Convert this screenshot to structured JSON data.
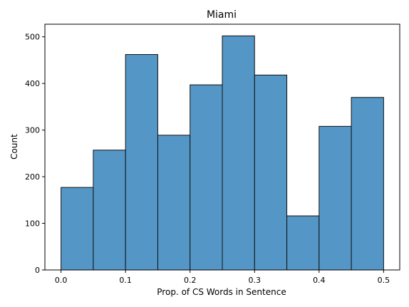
{
  "chart_data": {
    "type": "bar",
    "title": "Miami",
    "xlabel": "Prop. of CS Words in Sentence",
    "ylabel": "Count",
    "bins": [
      {
        "start": 0.0,
        "end": 0.05,
        "count": 177
      },
      {
        "start": 0.05,
        "end": 0.1,
        "count": 257
      },
      {
        "start": 0.1,
        "end": 0.15,
        "count": 462
      },
      {
        "start": 0.15,
        "end": 0.2,
        "count": 289
      },
      {
        "start": 0.2,
        "end": 0.25,
        "count": 397
      },
      {
        "start": 0.25,
        "end": 0.3,
        "count": 502
      },
      {
        "start": 0.3,
        "end": 0.35,
        "count": 418
      },
      {
        "start": 0.35,
        "end": 0.4,
        "count": 116
      },
      {
        "start": 0.4,
        "end": 0.45,
        "count": 308
      },
      {
        "start": 0.45,
        "end": 0.5,
        "count": 370
      }
    ],
    "xlim": [
      -0.025,
      0.525
    ],
    "ylim": [
      0,
      527
    ],
    "xticks": [
      0.0,
      0.1,
      0.2,
      0.3,
      0.4,
      0.5
    ],
    "xtick_labels": [
      "0.0",
      "0.1",
      "0.2",
      "0.3",
      "0.4",
      "0.5"
    ],
    "yticks": [
      0,
      100,
      200,
      300,
      400,
      500
    ],
    "ytick_labels": [
      "0",
      "100",
      "200",
      "300",
      "400",
      "500"
    ],
    "grid": false,
    "colors": {
      "bar_fill": "#5497c7",
      "bar_edge": "#111111",
      "axis": "#000000"
    }
  }
}
